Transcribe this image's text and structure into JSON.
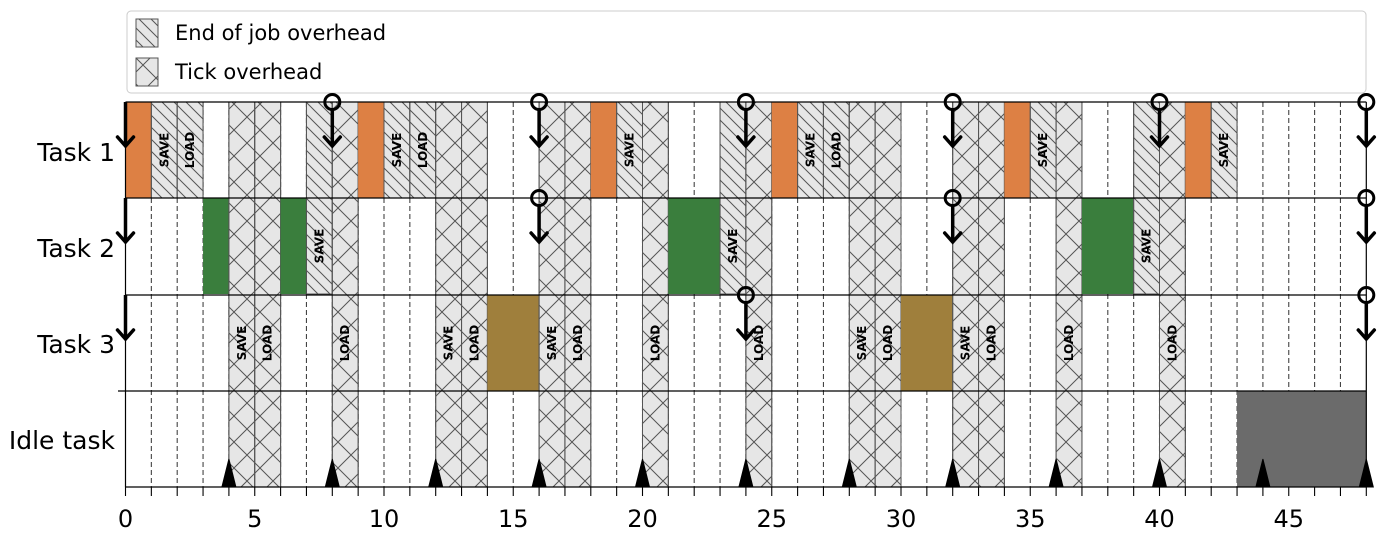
{
  "chart_data": {
    "type": "timeline",
    "xlim": [
      0,
      48
    ],
    "xticks": [
      0,
      5,
      10,
      15,
      20,
      25,
      30,
      35,
      40,
      45
    ],
    "minor_tick_step": 1,
    "grid": "dashed vertical lines every 1 unit",
    "legend": {
      "position": "top",
      "entries": [
        {
          "label": "End of job overhead",
          "hatch": "diagonal"
        },
        {
          "label": "Tick overhead",
          "hatch": "cross"
        }
      ]
    },
    "rows": [
      "Task 1",
      "Task 2",
      "Task 3",
      "Idle task"
    ],
    "colors": {
      "Task 1": "#dd8044",
      "Task 2": "#3a7e3d",
      "Task 3": "#9f7f3c",
      "Idle task": "#6b6b6b",
      "overhead_fill": "#e6e6e6",
      "hatch_line": "#555555"
    },
    "segments": [
      {
        "row": "Task 1",
        "start": 0,
        "end": 1,
        "kind": "run"
      },
      {
        "row": "Task 1",
        "start": 1,
        "end": 2,
        "kind": "job_end",
        "label": "SAVE"
      },
      {
        "row": "Task 1",
        "start": 2,
        "end": 3,
        "kind": "job_end",
        "label": "LOAD"
      },
      {
        "row": "Task 2",
        "start": 3,
        "end": 4,
        "kind": "run"
      },
      {
        "row": "Task 3",
        "start": 4,
        "end": 5,
        "kind": "tick",
        "label": "SAVE"
      },
      {
        "row": "Task 3",
        "start": 5,
        "end": 6,
        "kind": "tick",
        "label": "LOAD"
      },
      {
        "row": "Task 2",
        "start": 6,
        "end": 7,
        "kind": "run"
      },
      {
        "row": "Task 2",
        "start": 7,
        "end": 8,
        "kind": "job_end",
        "label": "SAVE"
      },
      {
        "row": "Task 3",
        "start": 8,
        "end": 9,
        "kind": "tick",
        "label": "LOAD"
      },
      {
        "row": "Task 1",
        "start": 9,
        "end": 10,
        "kind": "run"
      },
      {
        "row": "Task 1",
        "start": 10,
        "end": 11,
        "kind": "job_end",
        "label": "SAVE"
      },
      {
        "row": "Task 1",
        "start": 11,
        "end": 12,
        "kind": "job_end",
        "label": "LOAD"
      },
      {
        "row": "Task 3",
        "start": 12,
        "end": 13,
        "kind": "tick",
        "label": "SAVE"
      },
      {
        "row": "Task 3",
        "start": 13,
        "end": 14,
        "kind": "tick",
        "label": "LOAD"
      },
      {
        "row": "Task 3",
        "start": 14,
        "end": 16,
        "kind": "run"
      },
      {
        "row": "Task 3",
        "start": 16,
        "end": 17,
        "kind": "tick",
        "label": "SAVE"
      },
      {
        "row": "Task 3",
        "start": 17,
        "end": 18,
        "kind": "tick",
        "label": "LOAD"
      },
      {
        "row": "Task 1",
        "start": 18,
        "end": 19,
        "kind": "run"
      },
      {
        "row": "Task 1",
        "start": 19,
        "end": 20,
        "kind": "job_end",
        "label": "SAVE"
      },
      {
        "row": "Task 3",
        "start": 20,
        "end": 21,
        "kind": "tick",
        "label": "LOAD"
      },
      {
        "row": "Task 2",
        "start": 21,
        "end": 23,
        "kind": "run"
      },
      {
        "row": "Task 2",
        "start": 23,
        "end": 24,
        "kind": "job_end",
        "label": "SAVE"
      },
      {
        "row": "Task 3",
        "start": 24,
        "end": 25,
        "kind": "tick",
        "label": "LOAD"
      },
      {
        "row": "Task 1",
        "start": 25,
        "end": 26,
        "kind": "run"
      },
      {
        "row": "Task 1",
        "start": 26,
        "end": 27,
        "kind": "job_end",
        "label": "SAVE"
      },
      {
        "row": "Task 1",
        "start": 27,
        "end": 28,
        "kind": "job_end",
        "label": "LOAD"
      },
      {
        "row": "Task 3",
        "start": 28,
        "end": 29,
        "kind": "tick",
        "label": "SAVE"
      },
      {
        "row": "Task 3",
        "start": 29,
        "end": 30,
        "kind": "tick",
        "label": "LOAD"
      },
      {
        "row": "Task 3",
        "start": 30,
        "end": 32,
        "kind": "run"
      },
      {
        "row": "Task 3",
        "start": 32,
        "end": 33,
        "kind": "tick",
        "label": "SAVE"
      },
      {
        "row": "Task 3",
        "start": 33,
        "end": 34,
        "kind": "tick",
        "label": "LOAD"
      },
      {
        "row": "Task 1",
        "start": 34,
        "end": 35,
        "kind": "run"
      },
      {
        "row": "Task 1",
        "start": 35,
        "end": 36,
        "kind": "job_end",
        "label": "SAVE"
      },
      {
        "row": "Task 3",
        "start": 36,
        "end": 37,
        "kind": "tick",
        "label": "LOAD"
      },
      {
        "row": "Task 2",
        "start": 37,
        "end": 39,
        "kind": "run"
      },
      {
        "row": "Task 2",
        "start": 39,
        "end": 40,
        "kind": "job_end",
        "label": "SAVE"
      },
      {
        "row": "Task 3",
        "start": 40,
        "end": 41,
        "kind": "tick",
        "label": "LOAD"
      },
      {
        "row": "Task 1",
        "start": 41,
        "end": 42,
        "kind": "run"
      },
      {
        "row": "Task 1",
        "start": 42,
        "end": 43,
        "kind": "job_end",
        "label": "SAVE"
      },
      {
        "row": "Idle task",
        "start": 43,
        "end": 48,
        "kind": "run"
      }
    ],
    "release_arrows": [
      {
        "row": "Task 1",
        "x": 0,
        "circle": false
      },
      {
        "row": "Task 2",
        "x": 0,
        "circle": false
      },
      {
        "row": "Task 3",
        "x": 0,
        "circle": false
      },
      {
        "row": "Task 1",
        "x": 8,
        "circle": true
      },
      {
        "row": "Task 1",
        "x": 16,
        "circle": true
      },
      {
        "row": "Task 2",
        "x": 16,
        "circle": true
      },
      {
        "row": "Task 1",
        "x": 24,
        "circle": true
      },
      {
        "row": "Task 3",
        "x": 24,
        "circle": true
      },
      {
        "row": "Task 1",
        "x": 32,
        "circle": true
      },
      {
        "row": "Task 2",
        "x": 32,
        "circle": true
      },
      {
        "row": "Task 1",
        "x": 40,
        "circle": true
      },
      {
        "row": "Task 1",
        "x": 48,
        "circle": true
      },
      {
        "row": "Task 2",
        "x": 48,
        "circle": true
      },
      {
        "row": "Task 3",
        "x": 48,
        "circle": true
      }
    ],
    "tick_markers": [
      4,
      8,
      12,
      16,
      20,
      24,
      28,
      32,
      36,
      40,
      44,
      48
    ]
  }
}
